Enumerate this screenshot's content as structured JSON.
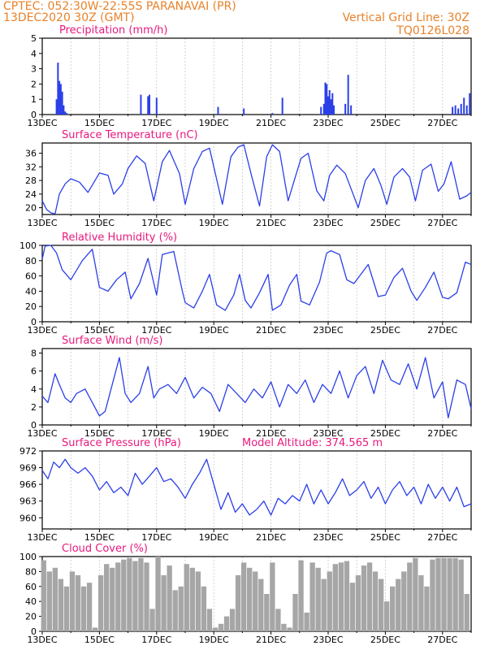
{
  "header": {
    "line1": "CPTEC:  052:30W-22:55S  PARANAVAI (PR)",
    "line2": "13DEC2020 30Z (GMT)",
    "right1": "Vertical Grid Line: 30Z",
    "right2": "TQ0126L028"
  },
  "x_ticks": [
    "13DEC",
    "15DEC",
    "17DEC",
    "19DEC",
    "21DEC",
    "23DEC",
    "25DEC",
    "27DEC"
  ],
  "x_range_days": [
    13,
    28
  ],
  "colors": {
    "line": "#2b3fe8",
    "bar": "#2b3fe8",
    "title": "#e8197d",
    "header": "#e8822a",
    "cloud": "#a6a6a6"
  },
  "chart_data": [
    {
      "type": "bar",
      "title": "Precipitation (mm/h)",
      "ylim": [
        0,
        5
      ],
      "yticks": [
        0,
        1,
        2,
        3,
        4,
        5
      ],
      "x": [
        13.5,
        13.55,
        13.6,
        13.65,
        13.7,
        13.75,
        13.8,
        13.85,
        16.45,
        16.7,
        16.75,
        17.0,
        19.15,
        20.05,
        21.05,
        21.4,
        22.75,
        22.85,
        22.9,
        22.95,
        23.0,
        23.05,
        23.1,
        23.15,
        23.2,
        23.6,
        23.7,
        23.8,
        27.35,
        27.45,
        27.55,
        27.65,
        27.75,
        27.85,
        27.95
      ],
      "values": [
        1.0,
        3.4,
        2.2,
        2.0,
        1.5,
        0.6,
        0.2,
        0.1,
        1.3,
        1.2,
        1.3,
        1.1,
        0.5,
        0.4,
        0.1,
        1.1,
        0.5,
        0.7,
        2.1,
        2.0,
        1.2,
        1.6,
        1.0,
        1.4,
        0.6,
        0.7,
        2.6,
        0.6,
        0.5,
        0.6,
        0.4,
        0.7,
        1.1,
        0.6,
        1.4
      ]
    },
    {
      "type": "line",
      "title": "Surface Temperature (nC)",
      "ylim": [
        18,
        39
      ],
      "yticks": [
        20,
        24,
        28,
        32,
        36
      ],
      "x": [
        13.0,
        13.15,
        13.3,
        13.45,
        13.6,
        13.8,
        14.0,
        14.3,
        14.6,
        15.0,
        15.3,
        15.5,
        15.8,
        16.0,
        16.3,
        16.6,
        16.9,
        17.2,
        17.45,
        17.8,
        18.0,
        18.3,
        18.6,
        18.85,
        19.0,
        19.3,
        19.6,
        19.85,
        20.05,
        20.3,
        20.6,
        20.85,
        21.05,
        21.3,
        21.6,
        21.85,
        22.05,
        22.3,
        22.6,
        22.85,
        23.05,
        23.3,
        23.6,
        23.85,
        24.05,
        24.3,
        24.6,
        24.85,
        25.05,
        25.3,
        25.6,
        25.85,
        26.05,
        26.3,
        26.6,
        26.85,
        27.05,
        27.3,
        27.6,
        27.85,
        28.0
      ],
      "values": [
        22,
        19.5,
        18.5,
        18.2,
        24,
        27,
        28.5,
        27.5,
        24.5,
        30.2,
        29.5,
        24,
        27,
        31.5,
        35.2,
        33,
        22,
        33.5,
        36.8,
        30,
        21,
        31.5,
        36.5,
        37.5,
        32,
        21,
        35,
        37.8,
        38.5,
        30,
        20.5,
        35,
        38.5,
        36.5,
        22,
        29,
        34.5,
        36,
        25,
        22,
        29.5,
        32.5,
        30,
        24.5,
        20,
        28,
        31.5,
        26.5,
        21,
        29,
        31.5,
        29,
        22,
        31,
        32.8,
        24.8,
        27,
        33.5,
        22.5,
        23.5,
        24.5
      ]
    },
    {
      "type": "line",
      "title": "Relative Humidity (%)",
      "ylim": [
        0,
        100
      ],
      "yticks": [
        0,
        20,
        40,
        60,
        80,
        100
      ],
      "x": [
        13.0,
        13.1,
        13.3,
        13.5,
        13.7,
        14.0,
        14.4,
        14.75,
        15.0,
        15.3,
        15.6,
        15.9,
        16.1,
        16.4,
        16.7,
        17.0,
        17.2,
        17.6,
        17.9,
        18.0,
        18.3,
        18.6,
        18.85,
        19.1,
        19.4,
        19.7,
        19.9,
        20.1,
        20.3,
        20.6,
        20.9,
        21.05,
        21.35,
        21.65,
        21.9,
        22.05,
        22.35,
        22.7,
        22.95,
        23.1,
        23.4,
        23.65,
        23.9,
        24.1,
        24.4,
        24.75,
        25.0,
        25.3,
        25.6,
        25.9,
        26.1,
        26.4,
        26.7,
        27.0,
        27.2,
        27.5,
        27.8,
        28.0
      ],
      "values": [
        82,
        99,
        100,
        90,
        68,
        55,
        80,
        95,
        45,
        40,
        55,
        65,
        30,
        50,
        83,
        35,
        88,
        92,
        40,
        25,
        18,
        40,
        62,
        22,
        15,
        35,
        62,
        28,
        18,
        38,
        62,
        15,
        22,
        48,
        62,
        27,
        22,
        52,
        90,
        93,
        88,
        55,
        50,
        60,
        75,
        33,
        35,
        58,
        70,
        40,
        28,
        45,
        65,
        32,
        30,
        38,
        78,
        75
      ]
    },
    {
      "type": "line",
      "title": "Surface Wind (m/s)",
      "ylim": [
        0,
        8.5
      ],
      "yticks": [
        0,
        2,
        4,
        6,
        8
      ],
      "x": [
        13.0,
        13.2,
        13.45,
        13.6,
        13.8,
        14.0,
        14.2,
        14.5,
        14.8,
        15.0,
        15.2,
        15.45,
        15.7,
        15.9,
        16.1,
        16.4,
        16.7,
        16.9,
        17.1,
        17.4,
        17.7,
        18.0,
        18.3,
        18.6,
        18.9,
        19.2,
        19.5,
        19.8,
        20.1,
        20.4,
        20.7,
        21.0,
        21.3,
        21.6,
        21.9,
        22.2,
        22.5,
        22.8,
        23.1,
        23.4,
        23.7,
        24.0,
        24.3,
        24.6,
        24.9,
        25.2,
        25.5,
        25.8,
        26.1,
        26.4,
        26.7,
        27.0,
        27.2,
        27.5,
        27.8,
        28.0
      ],
      "values": [
        3.2,
        2.5,
        5.7,
        4.5,
        3.0,
        2.5,
        3.5,
        4.0,
        2.2,
        1.0,
        1.5,
        4.5,
        7.5,
        3.5,
        2.5,
        3.5,
        6.5,
        3.0,
        4.0,
        4.5,
        3.5,
        5.3,
        3.0,
        4.2,
        3.5,
        1.5,
        4.5,
        3.5,
        2.5,
        4.0,
        3.0,
        4.8,
        2.0,
        4.5,
        3.5,
        5.0,
        2.5,
        4.5,
        3.5,
        6.0,
        3.0,
        5.5,
        6.5,
        3.5,
        7.2,
        5.0,
        4.5,
        6.8,
        4.0,
        7.5,
        3.0,
        4.8,
        0.8,
        5.0,
        4.5,
        1.8
      ],
      "ylabel": ""
    },
    {
      "type": "line",
      "title": "Surface Pressure (hPa)",
      "annotation": "Model Altitude: 374.565 m",
      "ylim": [
        958,
        972
      ],
      "yticks": [
        960,
        963,
        966,
        969,
        972
      ],
      "x": [
        13.0,
        13.2,
        13.4,
        13.6,
        13.8,
        14.0,
        14.25,
        14.5,
        14.75,
        15.0,
        15.25,
        15.5,
        15.75,
        16.0,
        16.25,
        16.5,
        16.75,
        17.0,
        17.25,
        17.5,
        17.75,
        18.0,
        18.25,
        18.5,
        18.75,
        19.0,
        19.25,
        19.5,
        19.75,
        20.0,
        20.25,
        20.5,
        20.75,
        21.0,
        21.25,
        21.5,
        21.75,
        22.0,
        22.25,
        22.5,
        22.75,
        23.0,
        23.25,
        23.5,
        23.75,
        24.0,
        24.25,
        24.5,
        24.75,
        25.0,
        25.25,
        25.5,
        25.75,
        26.0,
        26.25,
        26.5,
        26.75,
        27.0,
        27.25,
        27.5,
        27.75,
        28.0
      ],
      "values": [
        968.5,
        967,
        970,
        969,
        970.5,
        969,
        968,
        969,
        967.5,
        965,
        966.5,
        964.5,
        965.5,
        964,
        968,
        966,
        967.5,
        969,
        966.5,
        967,
        965.5,
        963.5,
        966,
        968,
        970.5,
        966,
        961.5,
        964.5,
        961,
        962.5,
        960.5,
        961.5,
        963,
        960.5,
        963.5,
        962.5,
        964,
        963,
        966,
        962.5,
        965,
        962.5,
        964.5,
        967,
        964,
        965,
        966.5,
        963.5,
        965.5,
        962.5,
        965,
        966.5,
        964,
        965.5,
        962.5,
        966,
        963.5,
        965.5,
        963,
        965.5,
        962,
        962.5
      ]
    },
    {
      "type": "bar",
      "title": "Cloud Cover (%)",
      "ylim": [
        0,
        100
      ],
      "yticks": [
        0,
        20,
        40,
        60,
        80,
        100
      ],
      "x": [
        13.05,
        13.25,
        13.45,
        13.65,
        13.85,
        14.05,
        14.25,
        14.45,
        14.65,
        14.85,
        15.05,
        15.25,
        15.45,
        15.65,
        15.85,
        16.05,
        16.25,
        16.45,
        16.65,
        16.85,
        17.05,
        17.25,
        17.45,
        17.65,
        17.85,
        18.05,
        18.25,
        18.45,
        18.65,
        18.85,
        19.05,
        19.25,
        19.45,
        19.65,
        19.85,
        20.05,
        20.25,
        20.45,
        20.65,
        20.85,
        21.05,
        21.25,
        21.45,
        21.65,
        21.85,
        22.05,
        22.25,
        22.45,
        22.65,
        22.85,
        23.05,
        23.25,
        23.45,
        23.65,
        23.85,
        24.05,
        24.25,
        24.45,
        24.65,
        24.85,
        25.05,
        25.25,
        25.45,
        25.65,
        25.85,
        26.05,
        26.25,
        26.45,
        26.65,
        26.85,
        27.05,
        27.25,
        27.45,
        27.65,
        27.85
      ],
      "values": [
        95,
        80,
        85,
        70,
        60,
        80,
        75,
        60,
        65,
        5,
        75,
        90,
        85,
        92,
        96,
        98,
        94,
        98,
        92,
        30,
        100,
        75,
        88,
        55,
        60,
        90,
        85,
        80,
        60,
        30,
        5,
        10,
        20,
        30,
        75,
        92,
        85,
        80,
        70,
        50,
        92,
        30,
        10,
        5,
        50,
        95,
        25,
        92,
        85,
        70,
        80,
        90,
        92,
        94,
        65,
        75,
        88,
        92,
        80,
        70,
        40,
        60,
        70,
        80,
        92,
        98,
        75,
        60,
        96,
        98,
        98,
        98,
        98,
        96,
        50
      ]
    }
  ]
}
